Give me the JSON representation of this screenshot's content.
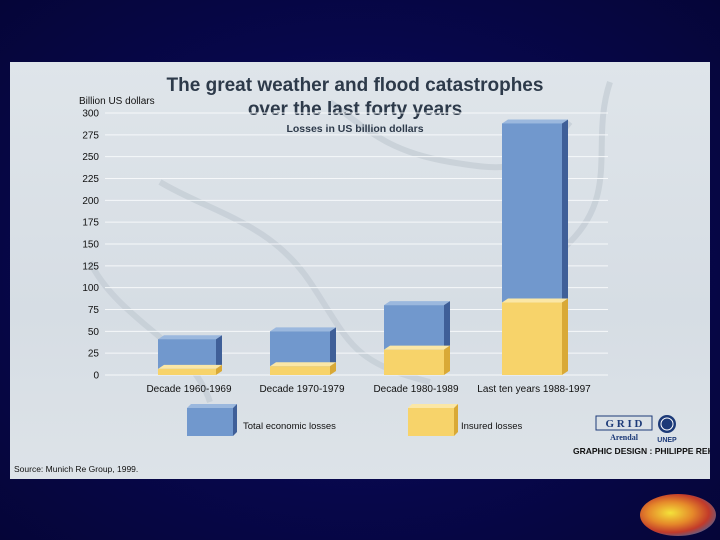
{
  "chart_data": {
    "type": "bar",
    "title_line1": "The great weather and flood catastrophes",
    "title_line2": "over the last forty years",
    "subtitle": "Losses in US billion dollars",
    "ylabel": "Billion US dollars",
    "ylim": [
      0,
      300
    ],
    "yticks": [
      0,
      25,
      50,
      75,
      100,
      125,
      150,
      175,
      200,
      225,
      250,
      275,
      300
    ],
    "categories": [
      "Decade 1960-1969",
      "Decade 1970-1979",
      "Decade 1980-1989",
      "Last ten years 1988-1997"
    ],
    "series": [
      {
        "name": "Insured losses",
        "values": [
          7,
          10,
          29,
          83
        ],
        "color": "#f7d36a"
      },
      {
        "name": "Total economic losses",
        "values": [
          41,
          50,
          80,
          288
        ],
        "color": "#7198cd"
      }
    ],
    "grid": true,
    "legend_placement": "bottom",
    "stacking": "overlay"
  },
  "legend": {
    "total": "Total economic losses",
    "insured": "Insured losses"
  },
  "credits": {
    "source": "Source: Munich Re Group, 1999.",
    "design": "GRAPHIC DESIGN : PHILIPPE REKACEWICZ",
    "org_grid": "G R I D",
    "org_arendal": "Arendal",
    "org_unep": "UNEP"
  },
  "colors": {
    "total_front": "#7198cd",
    "total_side": "#3f5f98",
    "total_top": "#9bb8de",
    "insured_front": "#f7d36a",
    "insured_side": "#d9a936",
    "insured_top": "#fbe7a6"
  }
}
